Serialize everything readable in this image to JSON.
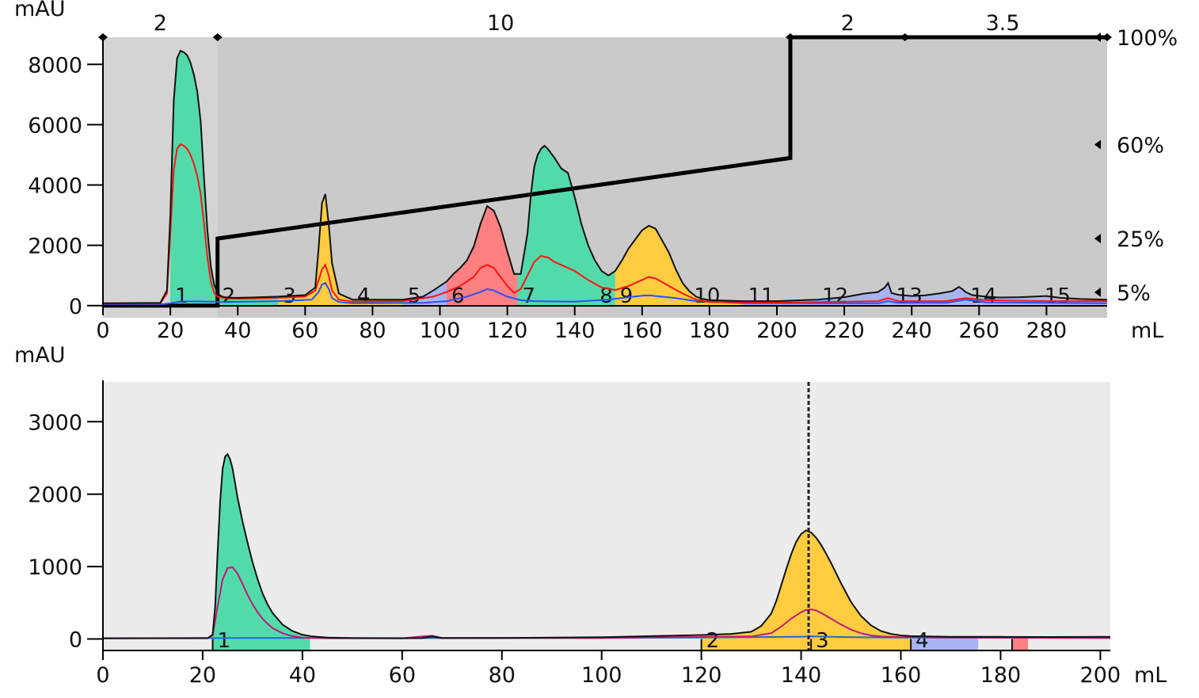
{
  "chart_data": [
    {
      "type": "area",
      "ylabel": "mAU",
      "xlabel": "mL",
      "xlim": [
        0,
        298
      ],
      "ylim": [
        -400,
        8900
      ],
      "x_ticks": [
        0,
        20,
        40,
        60,
        80,
        100,
        120,
        140,
        160,
        180,
        200,
        220,
        240,
        260,
        280
      ],
      "y_ticks": [
        0,
        2000,
        4000,
        6000,
        8000
      ],
      "grid": false,
      "segment_labels": [
        {
          "label": "2",
          "x": 17
        },
        {
          "label": "10",
          "x": 118
        },
        {
          "label": "2",
          "x": 221
        },
        {
          "label": "3.5",
          "x": 267
        }
      ],
      "segment_markers": [
        0,
        34,
        204,
        238,
        298
      ],
      "percent_labels": [
        {
          "label": "100%",
          "value": 100
        },
        {
          "label": "60%",
          "value": 60
        },
        {
          "label": "25%",
          "value": 25
        },
        {
          "label": "5%",
          "value": 5
        }
      ],
      "gradient": {
        "x": [
          0,
          34,
          34,
          204,
          204,
          298
        ],
        "percent": [
          0,
          0,
          25,
          55,
          100,
          100
        ],
        "y_for_100_percent": 8900
      },
      "shade_regions": [
        {
          "x": [
            0,
            34
          ],
          "color": "#d4d4d4"
        },
        {
          "x": [
            34,
            298
          ],
          "color": "#cacaca"
        }
      ],
      "fractions": [
        {
          "label": "1",
          "x": [
            20,
            34
          ],
          "color": "#52dba9"
        },
        {
          "label": "2",
          "x": [
            34,
            52
          ],
          "color": "#52dba9"
        },
        {
          "label": "3",
          "x": [
            52,
            74
          ],
          "color": "#ffcc3f"
        },
        {
          "label": "4",
          "x": [
            74,
            89
          ],
          "color": "#ffcc3f"
        },
        {
          "label": "5",
          "x": [
            89,
            102
          ],
          "color": "#a6b4f4"
        },
        {
          "label": "6",
          "x": [
            102,
            123
          ],
          "color": "#ff8080"
        },
        {
          "label": "7",
          "x": [
            123,
            146
          ],
          "color": "#52dba9"
        },
        {
          "label": "8",
          "x": [
            146,
            152
          ],
          "color": "#52dba9"
        },
        {
          "label": "9",
          "x": [
            152,
            174
          ],
          "color": "#ffcc3f"
        },
        {
          "label": "10",
          "x": [
            174,
            190
          ],
          "color": "#ffcc3f"
        },
        {
          "label": "11",
          "x": [
            190,
            212
          ],
          "color": "#a6b4f4"
        },
        {
          "label": "12",
          "x": [
            212,
            234
          ],
          "color": "#a6b4f4"
        },
        {
          "label": "13",
          "x": [
            234,
            256
          ],
          "color": "#a6b4f4"
        },
        {
          "label": "14",
          "x": [
            256,
            278
          ],
          "color": "#a6b4f4"
        },
        {
          "label": "15",
          "x": [
            278,
            298
          ],
          "color": "#a6b4f4"
        }
      ],
      "series": [
        {
          "color": "#111111",
          "role": "main trace, filled by fraction colour",
          "x": [
            0,
            17,
            19,
            20,
            21,
            22,
            23,
            24,
            25,
            26,
            27,
            28,
            29,
            30,
            31,
            32,
            33,
            34,
            35,
            36,
            38,
            40,
            44,
            52,
            60,
            63,
            64,
            65,
            66,
            67,
            68,
            70,
            74,
            89,
            95,
            98,
            102,
            104,
            106,
            108,
            110,
            112,
            114,
            116,
            118,
            120,
            122,
            124,
            126,
            127,
            128,
            129,
            130,
            131,
            132,
            134,
            136,
            138,
            140,
            142,
            144,
            146,
            148,
            150,
            152,
            154,
            156,
            158,
            160,
            162,
            164,
            166,
            168,
            170,
            172,
            174,
            176,
            178,
            180,
            190,
            200,
            212,
            220,
            226,
            230,
            232,
            233,
            234,
            236,
            240,
            244,
            248,
            252,
            254,
            255,
            256,
            258,
            262,
            266,
            272,
            276,
            280,
            284,
            290,
            298
          ],
          "y": [
            80,
            90,
            500,
            3000,
            6800,
            8200,
            8450,
            8400,
            8300,
            8050,
            7650,
            7100,
            6100,
            4200,
            2500,
            1300,
            700,
            400,
            320,
            280,
            260,
            260,
            270,
            300,
            350,
            600,
            1900,
            3400,
            3700,
            2700,
            1400,
            400,
            200,
            200,
            300,
            500,
            800,
            1050,
            1250,
            1500,
            1950,
            2700,
            3300,
            3150,
            2600,
            1800,
            1050,
            1050,
            2400,
            3700,
            4600,
            5000,
            5200,
            5300,
            5200,
            4900,
            4550,
            4400,
            3600,
            2700,
            2000,
            1500,
            1150,
            1000,
            1150,
            1500,
            1900,
            2200,
            2500,
            2650,
            2550,
            2150,
            1750,
            1200,
            750,
            480,
            300,
            220,
            180,
            150,
            150,
            200,
            280,
            400,
            450,
            600,
            750,
            420,
            360,
            320,
            340,
            400,
            480,
            620,
            550,
            450,
            350,
            300,
            270,
            280,
            300,
            320,
            260,
            220,
            200
          ]
        },
        {
          "color": "#ff1414",
          "role": "secondary trace",
          "x": [
            0,
            17,
            19,
            20,
            21,
            22,
            23,
            24,
            25,
            26,
            27,
            28,
            29,
            30,
            31,
            32,
            33,
            34,
            36,
            40,
            52,
            60,
            63,
            65,
            66,
            67,
            68,
            70,
            74,
            89,
            98,
            102,
            106,
            110,
            112,
            114,
            116,
            118,
            120,
            122,
            124,
            126,
            128,
            130,
            132,
            134,
            136,
            140,
            144,
            148,
            152,
            156,
            160,
            162,
            164,
            168,
            172,
            176,
            180,
            200,
            230,
            233,
            236,
            250,
            256,
            262,
            280,
            298
          ],
          "y": [
            70,
            70,
            400,
            2400,
            4500,
            5200,
            5350,
            5300,
            5200,
            5000,
            4700,
            4300,
            3700,
            2700,
            1600,
            800,
            420,
            300,
            250,
            230,
            260,
            300,
            500,
            1200,
            1350,
            1000,
            500,
            200,
            130,
            150,
            300,
            450,
            650,
            950,
            1250,
            1350,
            1250,
            950,
            650,
            420,
            550,
            1000,
            1450,
            1650,
            1600,
            1450,
            1350,
            1150,
            850,
            600,
            520,
            650,
            850,
            950,
            900,
            650,
            400,
            200,
            120,
            100,
            150,
            250,
            150,
            150,
            250,
            180,
            150,
            150
          ]
        },
        {
          "color": "#2a50ff",
          "role": "tertiary trace",
          "x": [
            0,
            18,
            20,
            22,
            24,
            28,
            32,
            36,
            52,
            62,
            64,
            65,
            66,
            67,
            68,
            70,
            74,
            95,
            102,
            108,
            112,
            114,
            116,
            120,
            124,
            128,
            132,
            140,
            150,
            156,
            160,
            162,
            164,
            170,
            176,
            190,
            230,
            233,
            236,
            250,
            256,
            262,
            280,
            298
          ],
          "y": [
            50,
            50,
            80,
            120,
            140,
            140,
            130,
            120,
            150,
            200,
            450,
            700,
            750,
            550,
            250,
            120,
            80,
            90,
            150,
            300,
            450,
            550,
            500,
            300,
            180,
            150,
            140,
            130,
            200,
            280,
            330,
            340,
            320,
            250,
            150,
            80,
            80,
            150,
            90,
            90,
            200,
            110,
            90,
            80
          ]
        }
      ]
    },
    {
      "type": "area",
      "ylabel": "mAU",
      "xlabel": "mL",
      "xlim": [
        0,
        202
      ],
      "ylim": [
        -180,
        3550
      ],
      "x_ticks": [
        0,
        20,
        40,
        60,
        80,
        100,
        120,
        140,
        160,
        180,
        200
      ],
      "y_ticks": [
        0,
        1000,
        2000,
        3000
      ],
      "grid": false,
      "marker_line_x": 141.5,
      "fractions": [
        {
          "label": "1",
          "x": [
            22,
            41.5
          ],
          "color": "#52dba9"
        },
        {
          "label": "2",
          "x": [
            120,
            142
          ],
          "color": "#ffcc3f"
        },
        {
          "label": "3",
          "x": [
            142,
            162
          ],
          "color": "#ffcc3f"
        },
        {
          "label": "4",
          "x": [
            162,
            175.5
          ],
          "color": "#a6b4f4"
        },
        {
          "label": "",
          "x": [
            182.3,
            185.5
          ],
          "color": "#ff8080"
        }
      ],
      "series": [
        {
          "color": "#111111",
          "role": "main trace, filled by fraction colour",
          "x": [
            0,
            21,
            22,
            22.5,
            23,
            23.5,
            24,
            24.5,
            25,
            25.5,
            26,
            26.5,
            27,
            28,
            29,
            30,
            31,
            32,
            33,
            34,
            36,
            38,
            40,
            42,
            45,
            50,
            60,
            64,
            66,
            68,
            80,
            100,
            110,
            120,
            126,
            130,
            132,
            134,
            135,
            136,
            137,
            138,
            139,
            140,
            141,
            142,
            143,
            144,
            145,
            146,
            147,
            148,
            149,
            150,
            152,
            154,
            156,
            158,
            160,
            162,
            170,
            180,
            190,
            202
          ],
          "y": [
            10,
            12,
            60,
            450,
            1200,
            1900,
            2350,
            2520,
            2550,
            2480,
            2350,
            2150,
            1950,
            1620,
            1330,
            1060,
            830,
            630,
            480,
            360,
            200,
            110,
            60,
            35,
            20,
            12,
            10,
            12,
            35,
            12,
            15,
            25,
            40,
            55,
            70,
            100,
            180,
            350,
            520,
            740,
            960,
            1170,
            1340,
            1450,
            1500,
            1470,
            1400,
            1300,
            1180,
            1050,
            910,
            770,
            640,
            510,
            320,
            190,
            110,
            70,
            50,
            40,
            30,
            30,
            28,
            30
          ]
        },
        {
          "color": "#c2187a",
          "role": "secondary trace",
          "x": [
            0,
            21,
            22,
            23,
            24,
            25,
            26,
            27,
            28,
            29,
            30,
            31,
            32,
            33,
            34,
            36,
            38,
            40,
            45,
            60,
            64,
            66,
            68,
            100,
            130,
            134,
            136,
            138,
            140,
            141,
            142,
            143,
            144,
            146,
            148,
            150,
            152,
            154,
            156,
            160,
            180,
            202
          ],
          "y": [
            8,
            10,
            50,
            450,
            820,
            980,
            990,
            900,
            760,
            610,
            480,
            370,
            280,
            210,
            150,
            80,
            40,
            20,
            10,
            10,
            35,
            45,
            15,
            15,
            35,
            80,
            170,
            280,
            370,
            400,
            410,
            395,
            360,
            280,
            200,
            130,
            80,
            50,
            35,
            25,
            18,
            15
          ]
        },
        {
          "color": "#1a6ec9",
          "role": "tertiary trace",
          "x": [
            0,
            22,
            30,
            60,
            100,
            120,
            130,
            138,
            140,
            142,
            146,
            150,
            160,
            202
          ],
          "y": [
            10,
            12,
            15,
            12,
            15,
            20,
            25,
            30,
            32,
            35,
            30,
            25,
            20,
            15
          ]
        }
      ]
    }
  ]
}
